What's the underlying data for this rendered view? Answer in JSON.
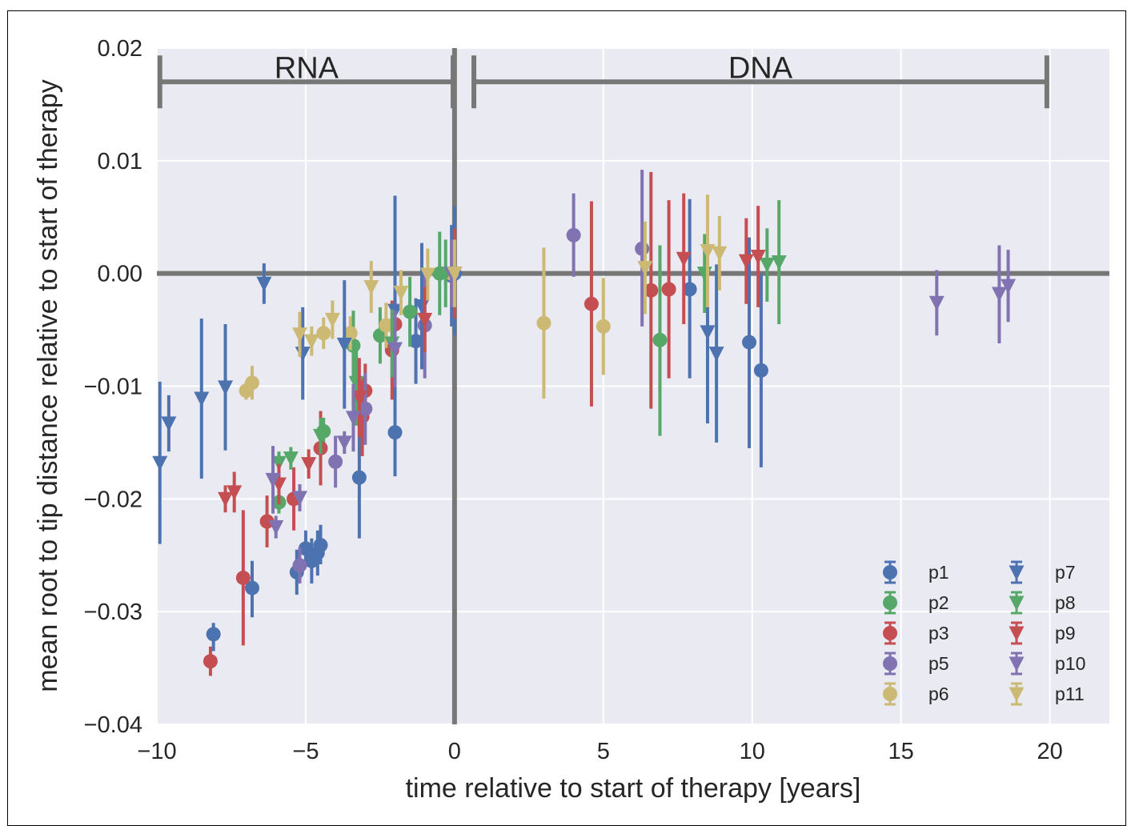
{
  "chart_data": {
    "type": "scatter",
    "xlabel": "time relative to start of therapy [years]",
    "ylabel": "mean root to tip distance relative to start of therapy",
    "xlim": [
      -10,
      22
    ],
    "ylim": [
      -0.04,
      0.02
    ],
    "xticks": [
      -10,
      -5,
      0,
      5,
      10,
      15,
      20
    ],
    "xtick_labels": [
      "−10",
      "−5",
      "0",
      "5",
      "10",
      "15",
      "20"
    ],
    "yticks": [
      0.02,
      0.01,
      0.0,
      -0.01,
      -0.02,
      -0.03,
      -0.04
    ],
    "ytick_labels": [
      "0.02",
      "0.01",
      "0.00",
      "−0.01",
      "−0.02",
      "−0.03",
      "−0.04"
    ],
    "grid": true,
    "legend_position": "bottom-right",
    "reference_lines": {
      "x": 0,
      "y": 0,
      "color": "#777777"
    },
    "regions": [
      {
        "label": "RNA",
        "x_start": -9.9,
        "x_end": -0.05,
        "y": 0.017
      },
      {
        "label": "DNA",
        "x_start": 0.65,
        "x_end": 19.9,
        "y": 0.017
      }
    ],
    "series": [
      {
        "name": "p1",
        "marker": "circle",
        "color": "#4c72b0",
        "points": [
          [
            -8.1,
            -0.032,
            -0.0335,
            -0.031
          ],
          [
            -6.8,
            -0.0279,
            -0.0305,
            -0.0255
          ],
          [
            -5.3,
            -0.0265,
            -0.0285,
            -0.0245
          ],
          [
            -5.0,
            -0.0244,
            -0.026,
            -0.0228
          ],
          [
            -4.8,
            -0.0255,
            -0.0275,
            -0.0235
          ],
          [
            -4.6,
            -0.0248,
            -0.0268,
            -0.0228
          ],
          [
            -4.5,
            -0.0241,
            -0.0258,
            -0.0223
          ],
          [
            -3.2,
            -0.0181,
            -0.0235,
            -0.0128
          ],
          [
            -2.0,
            -0.0141,
            -0.018,
            -0.0102
          ],
          [
            -1.3,
            -0.006,
            -0.0098,
            -0.0022
          ],
          [
            0.0,
            0.0,
            -0.0045,
            0.0045
          ],
          [
            7.9,
            -0.0014,
            -0.0093,
            0.0066
          ],
          [
            9.9,
            -0.0061,
            -0.0155,
            0.0032
          ],
          [
            10.3,
            -0.0086,
            -0.0172,
            0.0
          ],
          [
            -0.1,
            -0.0002,
            -0.0047,
            0.0043
          ]
        ]
      },
      {
        "name": "p2",
        "marker": "circle",
        "color": "#55a868",
        "points": [
          [
            -5.9,
            -0.0203,
            -0.0213,
            -0.0193
          ],
          [
            -4.4,
            -0.014,
            -0.0152,
            -0.0128
          ],
          [
            -3.4,
            -0.0064,
            -0.0095,
            -0.0033
          ],
          [
            -2.5,
            -0.0055,
            -0.008,
            -0.003
          ],
          [
            -1.5,
            -0.0034,
            -0.0065,
            -0.0003
          ],
          [
            -0.5,
            0.0,
            -0.0037,
            0.0037
          ],
          [
            6.9,
            -0.0059,
            -0.0144,
            0.0025
          ]
        ]
      },
      {
        "name": "p3",
        "marker": "circle",
        "color": "#c44e52",
        "points": [
          [
            -8.2,
            -0.0344,
            -0.0357,
            -0.0331
          ],
          [
            -7.1,
            -0.027,
            -0.033,
            -0.021
          ],
          [
            -6.3,
            -0.022,
            -0.0243,
            -0.0197
          ],
          [
            -5.4,
            -0.02,
            -0.0228,
            -0.0172
          ],
          [
            -4.5,
            -0.0155,
            -0.0188,
            -0.0122
          ],
          [
            -3.1,
            -0.0127,
            -0.0162,
            -0.0092
          ],
          [
            -3.0,
            -0.0104,
            -0.0128,
            -0.008
          ],
          [
            -2.1,
            -0.0068,
            -0.0112,
            -0.0024
          ],
          [
            -2.0,
            -0.0045,
            -0.0075,
            -0.0015
          ],
          [
            4.6,
            -0.0027,
            -0.0118,
            0.0064
          ],
          [
            6.6,
            -0.0015,
            -0.012,
            0.009
          ],
          [
            7.2,
            -0.0014,
            -0.0093,
            0.0065
          ]
        ]
      },
      {
        "name": "p5",
        "marker": "circle",
        "color": "#8172b2",
        "points": [
          [
            -5.2,
            -0.0259,
            -0.0275,
            -0.0243
          ],
          [
            -4.0,
            -0.0167,
            -0.019,
            -0.0144
          ],
          [
            -3.0,
            -0.012,
            -0.0152,
            -0.0088
          ],
          [
            -1.0,
            -0.0046,
            -0.0093,
            0.0001
          ],
          [
            4.0,
            0.0034,
            -0.0003,
            0.0071
          ],
          [
            6.3,
            0.0022,
            -0.0047,
            0.0092
          ]
        ]
      },
      {
        "name": "p6",
        "marker": "circle",
        "color": "#ccb974",
        "points": [
          [
            -7.0,
            -0.0104,
            -0.0112,
            -0.0096
          ],
          [
            -6.8,
            -0.0097,
            -0.0112,
            -0.0082
          ],
          [
            -4.4,
            -0.0053,
            -0.0067,
            -0.0039
          ],
          [
            -3.5,
            -0.0053,
            -0.0068,
            -0.0038
          ],
          [
            -2.3,
            -0.0046,
            -0.0066,
            -0.0026
          ],
          [
            3.0,
            -0.0044,
            -0.0111,
            0.0023
          ],
          [
            5.0,
            -0.0047,
            -0.009,
            -0.0004
          ],
          [
            -0.1,
            0.0,
            -0.0028,
            0.0028
          ]
        ]
      },
      {
        "name": "p7",
        "marker": "triangle",
        "color": "#4c72b0",
        "points": [
          [
            -9.9,
            -0.0168,
            -0.024,
            -0.0096
          ],
          [
            -9.6,
            -0.0133,
            -0.0158,
            -0.0108
          ],
          [
            -8.5,
            -0.0111,
            -0.0182,
            -0.004
          ],
          [
            -7.7,
            -0.0101,
            -0.0157,
            -0.0045
          ],
          [
            -6.4,
            -0.0009,
            -0.0027,
            0.0009
          ],
          [
            -5.1,
            -0.0071,
            -0.0112,
            -0.003
          ],
          [
            -3.7,
            -0.0063,
            -0.012,
            -0.0006
          ],
          [
            -2.0,
            -0.0033,
            -0.0135,
            0.0069
          ],
          [
            -1.1,
            -0.0029,
            -0.0085,
            0.0027
          ],
          [
            0.0,
            0.0,
            -0.0055,
            0.006
          ],
          [
            8.5,
            -0.0052,
            -0.0133,
            0.0029
          ],
          [
            8.8,
            -0.0071,
            -0.015,
            0.0008
          ]
        ]
      },
      {
        "name": "p8",
        "marker": "triangle",
        "color": "#55a868",
        "points": [
          [
            -5.9,
            -0.0168,
            -0.0178,
            -0.0158
          ],
          [
            -5.5,
            -0.0164,
            -0.0174,
            -0.0154
          ],
          [
            -4.5,
            -0.0144,
            -0.016,
            -0.0128
          ],
          [
            -3.3,
            -0.0097,
            -0.0135,
            -0.0059
          ],
          [
            -2.1,
            -0.0062,
            -0.0092,
            -0.0032
          ],
          [
            -0.3,
            0.0,
            -0.003,
            0.003
          ],
          [
            8.4,
            0.0,
            -0.0035,
            0.0035
          ],
          [
            10.5,
            0.0008,
            -0.0025,
            0.004
          ],
          [
            10.9,
            0.001,
            -0.0045,
            0.0065
          ]
        ]
      },
      {
        "name": "p9",
        "marker": "triangle",
        "color": "#c44e52",
        "points": [
          [
            -7.7,
            -0.02,
            -0.0212,
            -0.0188
          ],
          [
            -7.4,
            -0.0194,
            -0.0212,
            -0.0176
          ],
          [
            -5.9,
            -0.0187,
            -0.0205,
            -0.0169
          ],
          [
            -4.9,
            -0.0169,
            -0.0182,
            -0.0156
          ],
          [
            -3.2,
            -0.011,
            -0.0145,
            -0.0075
          ],
          [
            -1.0,
            -0.0041,
            -0.007,
            -0.0012
          ],
          [
            0.0,
            0.0,
            -0.004,
            0.004
          ],
          [
            7.7,
            0.0013,
            -0.0045,
            0.0071
          ],
          [
            9.8,
            0.0011,
            -0.0027,
            0.0049
          ],
          [
            10.2,
            0.0015,
            -0.003,
            0.006
          ]
        ]
      },
      {
        "name": "p10",
        "marker": "triangle",
        "color": "#8172b2",
        "points": [
          [
            -6.1,
            -0.0183,
            -0.0213,
            -0.0153
          ],
          [
            -6.0,
            -0.0225,
            -0.0235,
            -0.0215
          ],
          [
            -5.2,
            -0.0199,
            -0.0211,
            -0.0187
          ],
          [
            -3.7,
            -0.015,
            -0.016,
            -0.014
          ],
          [
            -3.4,
            -0.0128,
            -0.0158,
            -0.0098
          ],
          [
            -2.0,
            -0.0067,
            -0.0101,
            -0.0033
          ],
          [
            -0.1,
            0.0,
            -0.003,
            0.003
          ],
          [
            16.2,
            -0.0026,
            -0.0055,
            0.0003
          ],
          [
            18.3,
            -0.0018,
            -0.0062,
            0.0025
          ],
          [
            18.6,
            -0.0011,
            -0.0043,
            0.0021
          ]
        ]
      },
      {
        "name": "p11",
        "marker": "triangle",
        "color": "#ccb974",
        "points": [
          [
            -5.2,
            -0.0054,
            -0.0074,
            -0.0034
          ],
          [
            -4.8,
            -0.006,
            -0.0073,
            -0.0047
          ],
          [
            -4.1,
            -0.0041,
            -0.0058,
            -0.0024
          ],
          [
            -2.8,
            -0.0012,
            -0.0035,
            0.0011
          ],
          [
            -1.8,
            -0.0017,
            -0.0037,
            0.0003
          ],
          [
            -0.9,
            -0.0001,
            -0.0024,
            0.0022
          ],
          [
            6.4,
            0.0005,
            -0.0036,
            0.0046
          ],
          [
            8.5,
            0.002,
            -0.003,
            0.007
          ],
          [
            8.9,
            0.0018,
            -0.0015,
            0.0051
          ],
          [
            0.0,
            0.0,
            -0.003,
            0.003
          ]
        ]
      }
    ]
  }
}
